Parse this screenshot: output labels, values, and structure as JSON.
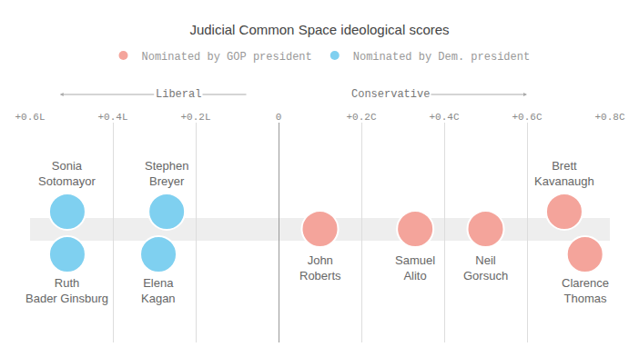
{
  "chart_data": {
    "type": "dot",
    "title": "Judicial Common Space ideological scores",
    "annotations": [
      "Liberal",
      "Conservative"
    ],
    "xlim": [
      -0.6,
      0.8
    ],
    "xticks": [
      {
        "value": -0.6,
        "label": "+0.6L"
      },
      {
        "value": -0.4,
        "label": "+0.4L"
      },
      {
        "value": -0.2,
        "label": "+0.2L"
      },
      0,
      {
        "value": 0.2,
        "label": "+0.2C"
      },
      {
        "value": 0.4,
        "label": "+0.4C"
      },
      {
        "value": 0.6,
        "label": "+0.6C"
      },
      {
        "value": 0.8,
        "label": "+0.8C"
      }
    ],
    "grid": true,
    "legend": "top",
    "series": [
      {
        "name": "Nominated by GOP president",
        "color": "#f4a49b",
        "labels": [
          "John Roberts",
          "Samuel Alito",
          "Neil Gorsuch",
          "Brett Kavanaugh",
          "Clarence Thomas"
        ],
        "values": [
          0.1,
          0.33,
          0.5,
          0.69,
          0.74
        ]
      },
      {
        "name": "Nominated by Dem. president",
        "color": "#7fd0f0",
        "labels": [
          "Sonia Sotomayor",
          "Ruth Bader Ginsburg",
          "Stephen Breyer",
          "Elena Kagan"
        ],
        "values": [
          -0.51,
          -0.51,
          -0.27,
          -0.29
        ]
      }
    ]
  }
}
